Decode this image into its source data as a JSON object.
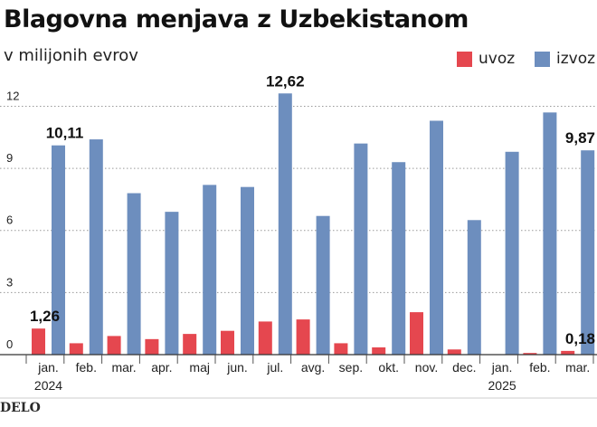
{
  "header": {
    "title": "Blagovna menjava z Uzbekistanom",
    "subtitle": "v milijonih evrov"
  },
  "footer": {
    "brand": "DELO"
  },
  "colors": {
    "uvoz": "#e5474f",
    "izvoz": "#6d8ebe",
    "grid": "#9a9a9a"
  },
  "chart_data": {
    "type": "bar",
    "title": "Blagovna menjava z Uzbekistanom",
    "subtitle": "v milijonih evrov",
    "categories": [
      "jan.",
      "feb.",
      "mar.",
      "apr.",
      "maj",
      "jun.",
      "jul.",
      "avg.",
      "sep.",
      "okt.",
      "nov.",
      "dec.",
      "jan.",
      "feb.",
      "mar."
    ],
    "year_labels": [
      {
        "index": 0,
        "label": "2024"
      },
      {
        "index": 12,
        "label": "2025"
      }
    ],
    "series": [
      {
        "name": "uvoz",
        "values": [
          1.26,
          0.55,
          0.9,
          0.75,
          1.0,
          1.15,
          1.6,
          1.7,
          0.55,
          0.35,
          2.05,
          0.25,
          0.0,
          0.08,
          0.18
        ]
      },
      {
        "name": "izvoz",
        "values": [
          10.11,
          10.4,
          7.8,
          6.9,
          8.2,
          8.1,
          12.62,
          6.7,
          10.2,
          9.3,
          11.3,
          6.5,
          9.8,
          11.7,
          9.87
        ]
      }
    ],
    "annotations": [
      {
        "series": "uvoz",
        "index": 0,
        "text": "1,26"
      },
      {
        "series": "izvoz",
        "index": 0,
        "text": "10,11"
      },
      {
        "series": "izvoz",
        "index": 6,
        "text": "12,62"
      },
      {
        "series": "izvoz",
        "index": 14,
        "text": "9,87"
      },
      {
        "series": "uvoz",
        "index": 14,
        "text": "0,18"
      }
    ],
    "yticks": [
      0,
      3,
      6,
      9,
      12
    ],
    "ytick_labels": [
      "0",
      "3",
      "6",
      "9",
      "12"
    ],
    "ylim": [
      0,
      13.2
    ],
    "grid": true,
    "legend": "top-right"
  }
}
